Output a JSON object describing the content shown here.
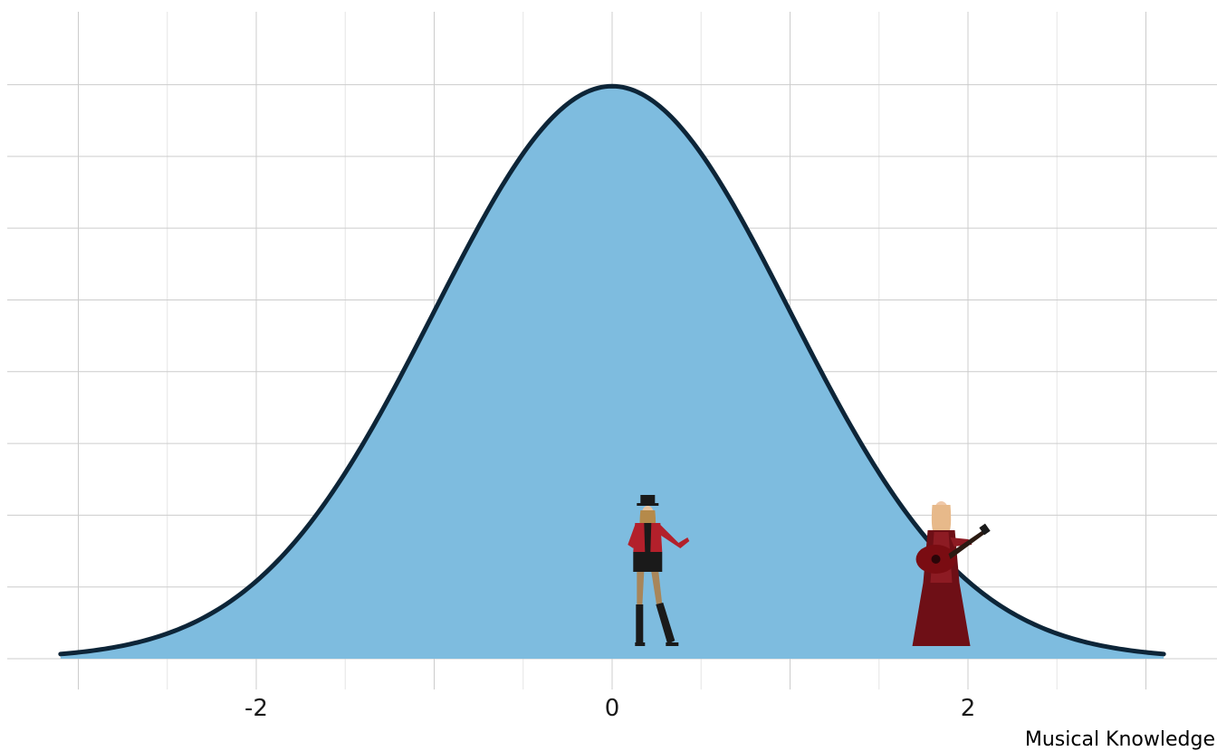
{
  "chart_data": {
    "type": "area",
    "title": "",
    "xlabel": "Musical Knowledge",
    "ylabel": "",
    "xlim": [
      -3.4,
      3.4
    ],
    "ylim": [
      0,
      0.43
    ],
    "x_ticks": [
      -2,
      0,
      2
    ],
    "x_tick_labels": [
      "-2",
      "0",
      "2"
    ],
    "distribution": "standard normal density",
    "mean": 0,
    "sd": 1,
    "x_range": [
      -3.1,
      3.1
    ],
    "grid": true,
    "colors": {
      "fill": "#7ebcdf",
      "line": "#0d2538",
      "grid": "#cccccc"
    },
    "annotations": [
      {
        "name": "performer-in-red-jacket-and-top-hat",
        "x": 0.2
      },
      {
        "name": "performer-in-red-gown-with-guitar",
        "x": 1.85
      }
    ]
  }
}
